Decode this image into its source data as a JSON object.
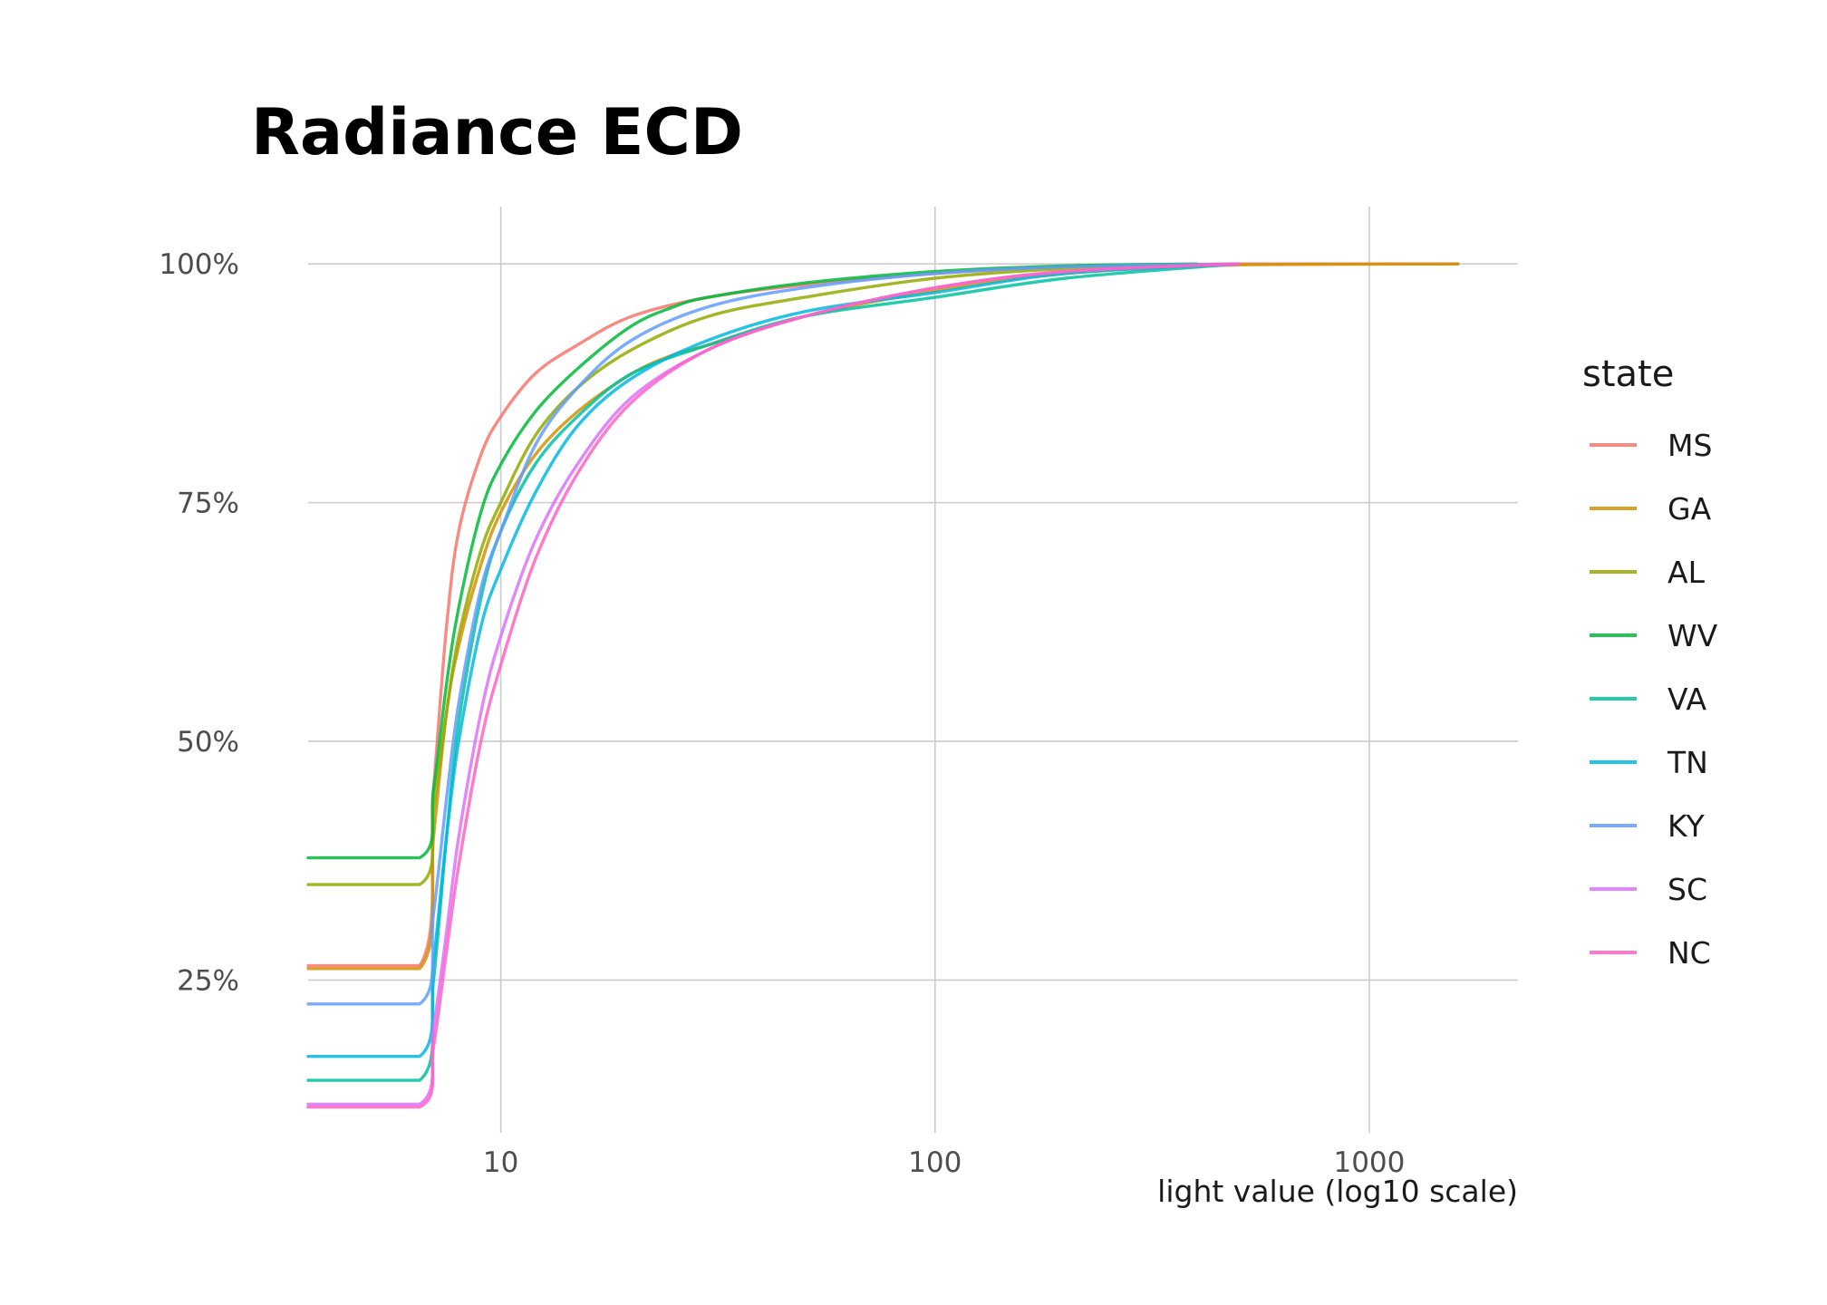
{
  "chart_data": {
    "type": "line",
    "title": "Radiance ECD",
    "xlabel": "light value (log10 scale)",
    "ylabel": "",
    "x_scale": "log10",
    "xlim": [
      3.6,
      2200
    ],
    "ylim": [
      0.09,
      1.06
    ],
    "x_ticks": [
      {
        "value": 10,
        "label": "10"
      },
      {
        "value": 100,
        "label": "100"
      },
      {
        "value": 1000,
        "label": "1000"
      }
    ],
    "y_ticks": [
      {
        "value": 0.25,
        "label": "25%"
      },
      {
        "value": 0.5,
        "label": "50%"
      },
      {
        "value": 0.75,
        "label": "75%"
      },
      {
        "value": 1.0,
        "label": "100%"
      }
    ],
    "grid": true,
    "legend": {
      "title": "state",
      "position": "right"
    },
    "series": [
      {
        "name": "MS",
        "color": "#F8766D",
        "x": [
          3.6,
          6.5,
          7.0,
          7.5,
          8.0,
          9.0,
          10,
          12,
          15,
          20,
          30,
          50,
          100,
          200,
          500,
          1600
        ],
        "y": [
          0.265,
          0.265,
          0.45,
          0.62,
          0.72,
          0.8,
          0.84,
          0.885,
          0.915,
          0.945,
          0.965,
          0.978,
          0.99,
          0.997,
          1.0,
          1.0
        ]
      },
      {
        "name": "GA",
        "color": "#D39200",
        "x": [
          3.6,
          6.5,
          7.0,
          7.5,
          8.0,
          9.0,
          10,
          12,
          15,
          20,
          25,
          30,
          50,
          100,
          200,
          500,
          1600
        ],
        "y": [
          0.262,
          0.262,
          0.4,
          0.53,
          0.6,
          0.685,
          0.74,
          0.8,
          0.845,
          0.885,
          0.905,
          0.915,
          0.945,
          0.972,
          0.99,
          0.999,
          1.0
        ]
      },
      {
        "name": "AL",
        "color": "#93AA00",
        "x": [
          3.6,
          6.5,
          7.0,
          7.5,
          8.0,
          9.0,
          10,
          12,
          15,
          20,
          30,
          50,
          100,
          200,
          500
        ],
        "y": [
          0.35,
          0.35,
          0.43,
          0.53,
          0.61,
          0.7,
          0.75,
          0.82,
          0.87,
          0.91,
          0.945,
          0.965,
          0.985,
          0.995,
          1.0
        ]
      },
      {
        "name": "WV",
        "color": "#00BA38",
        "x": [
          3.6,
          6.5,
          7.0,
          7.5,
          8.0,
          9.0,
          10,
          12,
          15,
          20,
          25,
          30,
          50,
          100,
          200,
          400
        ],
        "y": [
          0.378,
          0.378,
          0.45,
          0.56,
          0.64,
          0.74,
          0.79,
          0.845,
          0.89,
          0.935,
          0.955,
          0.965,
          0.98,
          0.992,
          0.998,
          1.0
        ]
      },
      {
        "name": "VA",
        "color": "#00C19F",
        "x": [
          3.6,
          6.5,
          7.0,
          7.5,
          8.0,
          9.0,
          10,
          12,
          15,
          20,
          30,
          50,
          100,
          200,
          500
        ],
        "y": [
          0.145,
          0.145,
          0.25,
          0.4,
          0.52,
          0.65,
          0.72,
          0.79,
          0.84,
          0.885,
          0.915,
          0.945,
          0.965,
          0.985,
          1.0
        ]
      },
      {
        "name": "TN",
        "color": "#00B9E3",
        "x": [
          3.6,
          6.5,
          7.0,
          7.5,
          8.0,
          9.0,
          10,
          12,
          15,
          20,
          30,
          50,
          100,
          200,
          500
        ],
        "y": [
          0.17,
          0.17,
          0.27,
          0.4,
          0.5,
          0.62,
          0.68,
          0.76,
          0.83,
          0.88,
          0.92,
          0.95,
          0.97,
          0.99,
          1.0
        ]
      },
      {
        "name": "KY",
        "color": "#619CFF",
        "x": [
          3.6,
          6.5,
          7.0,
          7.5,
          8.0,
          9.0,
          10,
          12,
          15,
          20,
          30,
          50,
          100,
          200,
          500
        ],
        "y": [
          0.225,
          0.225,
          0.32,
          0.44,
          0.54,
          0.66,
          0.72,
          0.81,
          0.87,
          0.92,
          0.955,
          0.975,
          0.99,
          0.997,
          1.0
        ]
      },
      {
        "name": "SC",
        "color": "#DB72FB",
        "x": [
          3.6,
          6.5,
          7.0,
          7.5,
          8.0,
          9.0,
          10,
          12,
          15,
          20,
          30,
          50,
          100,
          200,
          500
        ],
        "y": [
          0.12,
          0.12,
          0.2,
          0.3,
          0.4,
          0.53,
          0.61,
          0.71,
          0.79,
          0.86,
          0.91,
          0.945,
          0.975,
          0.992,
          1.0
        ]
      },
      {
        "name": "NC",
        "color": "#FF61C3",
        "x": [
          3.6,
          6.5,
          7.0,
          7.5,
          8.0,
          9.0,
          10,
          12,
          15,
          20,
          30,
          50,
          100,
          200,
          500
        ],
        "y": [
          0.117,
          0.117,
          0.18,
          0.28,
          0.37,
          0.5,
          0.58,
          0.69,
          0.78,
          0.855,
          0.91,
          0.945,
          0.975,
          0.992,
          1.0
        ]
      }
    ]
  }
}
